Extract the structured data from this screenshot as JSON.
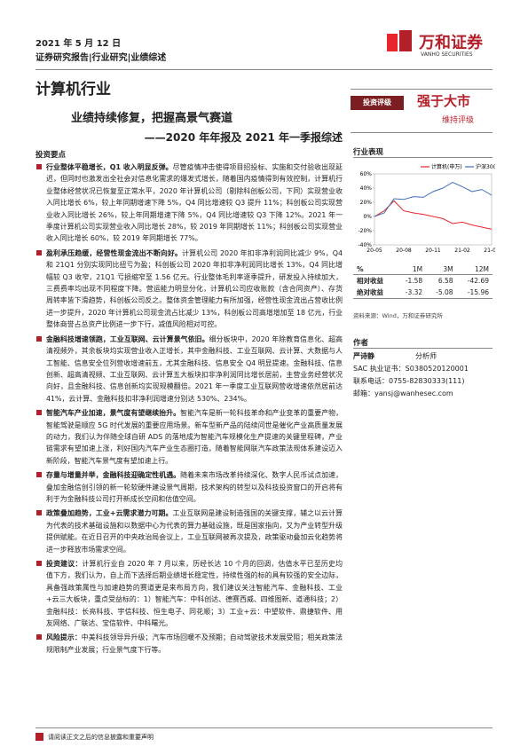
{
  "header": {
    "date": "2021 年 5 月 12 日",
    "tags": "证券研究报告|行业研究|业绩综述",
    "logo_cn": "万和证券",
    "logo_en": "VANHO SECURITIES"
  },
  "title": {
    "industry": "计算机行业",
    "subtitle": "业绩持续修复，把握高景气赛道",
    "subtitle2": "——2020 年年报及 2021 年一季报综述"
  },
  "rating": {
    "label": "投资评级",
    "value": "强于大市",
    "note": "维持评级"
  },
  "points": {
    "heading": "投资要点",
    "items": [
      {
        "lead": "行业整体平稳增长，Q1 收入明显反弹。",
        "text": "尽管疫情冲击使得项目招投标、实施和交付验收出现延迟，但同时也激发出全社会对信息化需求的爆发式增长，随着国内疫情得到有效控制，计算机行业整体经营状况已恢复至正常水平，2020 年计算机公司（剔除科创板公司，下同）实现营业收入同比增长 6%，较上年同期增速下降 5%，Q4 同比增速较 Q3 提升 11%；科创板公司实现营业收入同比增长 26%，较上年同期增速下降 5%，Q4 同比增速较 Q3 下降 12%。2021 年一季度计算机公司实现营业收入同比增长 28%，较 2019 年同期增长 11%；科创板公司实现营业收入同比增长 60%，较 2019 年同期增长 77%。"
      },
      {
        "lead": "盈利承压趋缓，经营性现金流出不断向好。",
        "text": "计算机公司 2020 年扣非净利润同比减少 9%，Q4 和 21Q1 分别实现同比扭亏为盈；科创板公司 2020 年扣非净利润同比增长 13%，Q4 同比增幅较 Q3 收窄，21Q1 亏损缩窄至 1.56 亿元。行业整体毛利率逐季提升，研发投入持续加大，三费费率均出现不同程度下降。营运能力明显分化，计算机公司应收账款（含合同资产）、存货周转率皆下滑趋势，科创板公司反之。整体资金管理能力有所加强，经营性现金流出占营收比例进一步提升，2020 年计算机公司现金流占比减少 13%，科创板公司高增增加至 18 亿元，行业整体商誉占总资产比例进一步下行，减值风险相对可控。"
      },
      {
        "lead": "金融科技增速领跑，工业互联网、云计算景气依旧。",
        "text": "细分板块中，2020 年除教育信息化、超高清视频外，其余板块均实现营业收入正增长，其中金融科技、工业互联网、云计算、大数据与人工智能、信息安全位列营收增速前五，尤其金融科技、信息安全 Q4 明显提速。金融科技、信息创新、超高清视频、工业互联网、云计算五大板块扣非净利润同比增长居前，主营业务经营状况向好，且金融科技、信息创新均实现规模翻倍。2021 年一季度工业互联网营收增速依然居前达 41%，云计算、金融科技扣非净利润增速分别达 530%、234%。"
      },
      {
        "lead": "智能汽车产业加速，景气度有望继续抬升。",
        "text": "智能汽车是新一轮科技革命和产业变革的重要产物，智能驾驶是顺应 5G 时代发展的重要应用场景。新车型新产品的陆续问世是催化产业高质量发展的动力，我们认为伴随全球自研 ADS 的落地成为智能汽车规模化生产提速的关键里程碑，产业链需求有望加速上涨，利好国内汽车产业生态圈打造，随着智能网联汽车政策法规体系建设迈入新阶段，智能汽车景气度有望加速上行。"
      },
      {
        "lead": "存量与增量并举，金融科技迎确定性机遇。",
        "text": "随着未来市场改革持续深化、数字人民币试点加速，叠加金融信创引领的新一轮软硬件建设景气周期，技术架构的转型以及科技投资窗口的开启将有利于为金融科技公司打开新成长空间和估值空间。"
      },
      {
        "lead": "政策叠加趋势，工业+云需求潜力可期。",
        "text": "工业互联网是建设制造强国的关键支撑，辅之以云计算为代表的技术基础设施和以数据中心为代表的算力基础设施，既是国家指向，又为产业转型升级提供赋能。在近日召开的中央政治局会议上，工业互联网被再次提及，政策驱动叠加云化趋势将进一步释放市场需求空间。"
      },
      {
        "lead": "投资建议：",
        "text": "计算机行业自 2020 年 7 月以来，历经长达 10 个月的回调，估值水平已至历史均值下方，我们认为，自上而下选择后期业绩增长稳定性，持续性强的标的具有较强的安全边际，具备强政策属性与加速趋势的赛道更是来布局方向，我们建议关注智能汽车、金融科技、工业+云三大板块，重点受益标的：1）智能汽车：中科创达、德赛西威、四维图新、道通科技；2）金融科技：长亮科技、宇信科技、恒生电子、同花顺；3）工业+云：中望软件、鼎捷软件、用友网络、广联达、宝信软件、中科曙光。"
      },
      {
        "lead": "风险提示：",
        "text": "中美科技领导异升级；汽车市场回暖不及预期；自动驾驶技术发展受阻；相关政策法规限制产业发展；行业景气度下行等。"
      }
    ]
  },
  "performance": {
    "heading": "行业表现",
    "chart": {
      "type": "line",
      "categories": [
        "20-05",
        null,
        null,
        "20-08",
        null,
        null,
        "20-11",
        null,
        null,
        "21-02",
        null,
        null,
        "21-05"
      ],
      "series": [
        {
          "name": "计算机(申万)",
          "color": "#e8262c",
          "values": [
            0,
            8,
            22,
            8,
            5,
            3,
            0,
            -3,
            -10,
            -8,
            -12,
            -15,
            -18
          ]
        },
        {
          "name": "沪深300",
          "color": "#3d6fb6",
          "values": [
            0,
            5,
            25,
            24,
            28,
            27,
            35,
            40,
            48,
            42,
            35,
            38,
            30
          ]
        }
      ],
      "ylim": [
        -40,
        60
      ],
      "yticks": [
        {
          "value": -40,
          "label": "-40%"
        },
        {
          "value": -20,
          "label": "-20%"
        },
        {
          "value": 0,
          "label": "0%"
        },
        {
          "value": 20,
          "label": "20%"
        },
        {
          "value": 40,
          "label": "40%"
        },
        {
          "value": 60,
          "label": "60%"
        }
      ]
    },
    "table": {
      "header": [
        "%",
        "1M",
        "3M",
        "12M"
      ],
      "rows": [
        [
          "相对收益",
          -1.58,
          6.58,
          -42.69
        ],
        [
          "绝对收益",
          -3.32,
          -5.08,
          -15.96
        ]
      ]
    },
    "source": "资料来源：Wind，万和证券研究所"
  },
  "author": {
    "heading": "作者",
    "name": "严诗静",
    "role": "分析师",
    "sac": "SAC 执业证书：S0380520120001",
    "phone": "联系电话：0755-82830333(111)",
    "email": "邮箱：yansj@wanhesec.com"
  },
  "footer": "请阅读正文之后的信息披露和重要声明"
}
